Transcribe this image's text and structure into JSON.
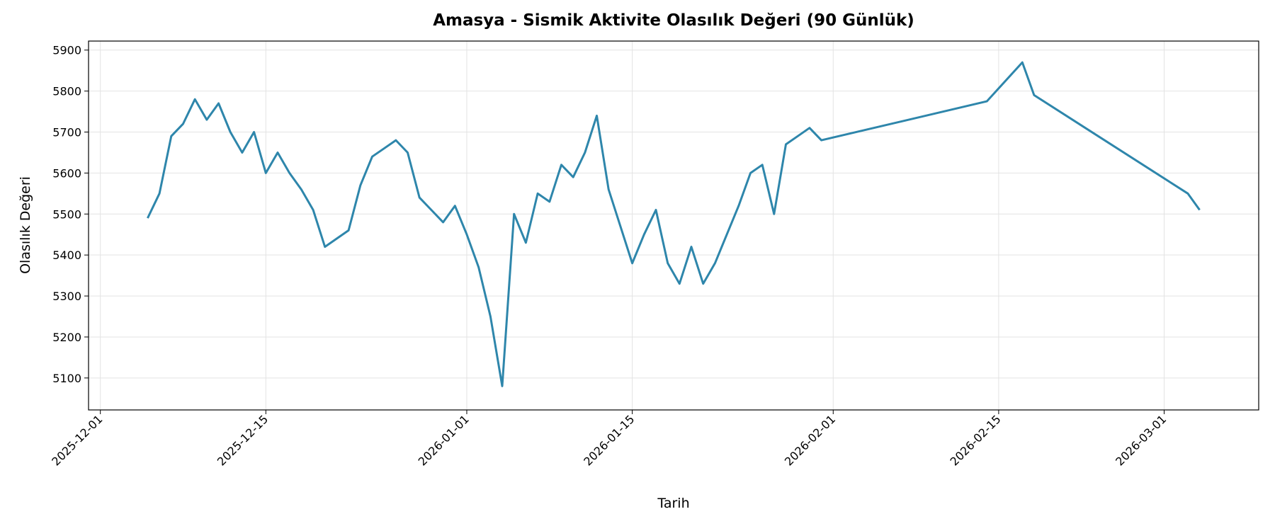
{
  "chart_data": {
    "type": "line",
    "title": "Amasya - Sismik Aktivite Olasılık Değeri (90 Günlük)",
    "x_label": "Tarih",
    "y_label": "Olasılık Değeri",
    "x": [
      "2025-12-05",
      "2025-12-06",
      "2025-12-07",
      "2025-12-08",
      "2025-12-09",
      "2025-12-10",
      "2025-12-11",
      "2025-12-12",
      "2025-12-13",
      "2025-12-14",
      "2025-12-15",
      "2025-12-16",
      "2025-12-17",
      "2025-12-18",
      "2025-12-19",
      "2025-12-20",
      "2025-12-21",
      "2025-12-22",
      "2025-12-23",
      "2025-12-24",
      "2025-12-25",
      "2025-12-26",
      "2025-12-27",
      "2025-12-28",
      "2025-12-29",
      "2025-12-30",
      "2025-12-31",
      "2026-01-01",
      "2026-01-02",
      "2026-01-03",
      "2026-01-04",
      "2026-01-05",
      "2026-01-06",
      "2026-01-07",
      "2026-01-08",
      "2026-01-09",
      "2026-01-10",
      "2026-01-11",
      "2026-01-12",
      "2026-01-13",
      "2026-01-14",
      "2026-01-15",
      "2026-01-16",
      "2026-01-17",
      "2026-01-18",
      "2026-01-19",
      "2026-01-20",
      "2026-01-21",
      "2026-01-22",
      "2026-01-23",
      "2026-01-24",
      "2026-01-25",
      "2026-01-26",
      "2026-01-27",
      "2026-01-28",
      "2026-01-29",
      "2026-01-30",
      "2026-01-31",
      "2026-02-14",
      "2026-02-17",
      "2026-02-18",
      "2026-03-03",
      "2026-03-04"
    ],
    "series": [
      {
        "name": "Olasılık Değeri",
        "color": "#2e86ab",
        "values": [
          5490,
          5550,
          5690,
          5720,
          5780,
          5730,
          5770,
          5700,
          5650,
          5700,
          5600,
          5650,
          5600,
          5560,
          5510,
          5420,
          5440,
          5460,
          5570,
          5640,
          5660,
          5680,
          5650,
          5540,
          5510,
          5480,
          5520,
          5450,
          5370,
          5250,
          5080,
          5500,
          5430,
          5550,
          5530,
          5620,
          5590,
          5650,
          5740,
          5560,
          5470,
          5380,
          5450,
          5510,
          5380,
          5330,
          5420,
          5330,
          5380,
          5450,
          5520,
          5600,
          5620,
          5500,
          5670,
          5690,
          5710,
          5680,
          5775,
          5870,
          5790,
          5550,
          5510
        ]
      }
    ],
    "xlim": [
      "2025-11-30",
      "2026-03-09"
    ],
    "xticks": [
      "2025-12-01",
      "2025-12-15",
      "2026-01-01",
      "2026-01-15",
      "2026-02-01",
      "2026-02-15",
      "2026-03-01"
    ],
    "ylim": [
      5022,
      5922
    ],
    "yticks": [
      5100,
      5200,
      5300,
      5400,
      5500,
      5600,
      5700,
      5800,
      5900
    ],
    "grid": true
  }
}
